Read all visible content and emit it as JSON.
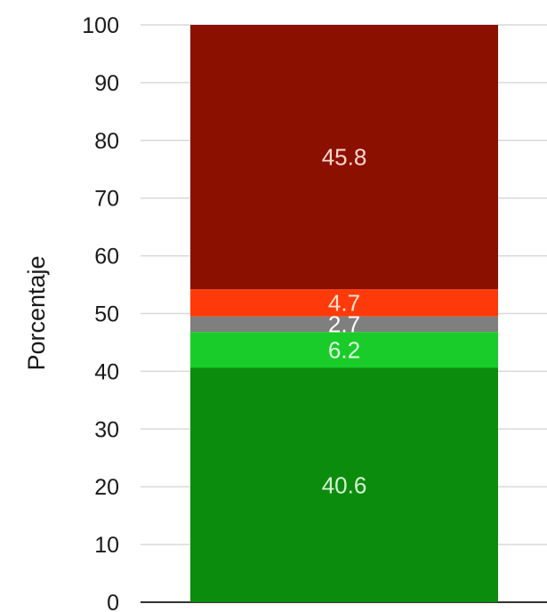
{
  "chart_data": {
    "type": "bar",
    "stacked": true,
    "ylabel": "Porcentaje",
    "ylim": [
      0,
      100
    ],
    "yticks": [
      0,
      10,
      20,
      30,
      40,
      50,
      60,
      70,
      80,
      90,
      100
    ],
    "grid": true,
    "segments": [
      {
        "value": 40.6,
        "label": "40.6",
        "color": "#0c8c0c",
        "label_color": "#d6f5d6"
      },
      {
        "value": 6.2,
        "label": "6.2",
        "color": "#19cc2a",
        "label_color": "#e0ffe0"
      },
      {
        "value": 2.7,
        "label": "2.7",
        "color": "#7f7f7f",
        "label_color": "#ffffff"
      },
      {
        "value": 4.7,
        "label": "4.7",
        "color": "#ff3a0a",
        "label_color": "#ffe0d0"
      },
      {
        "value": 45.8,
        "label": "45.8",
        "color": "#8c1000",
        "label_color": "#ffd8d0"
      }
    ]
  }
}
